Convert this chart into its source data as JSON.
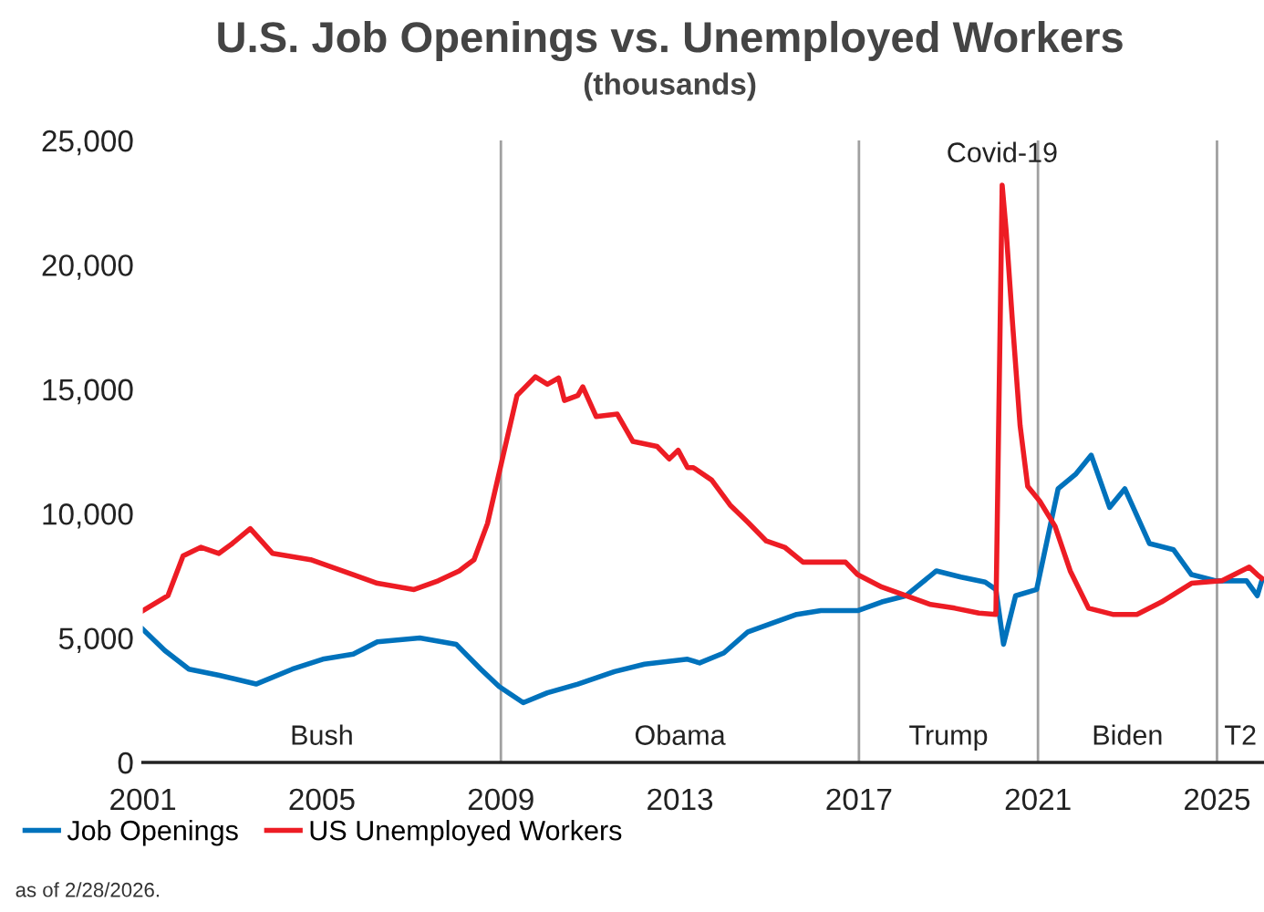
{
  "chart_data": {
    "type": "line",
    "title": "U.S. Job Openings vs. Unemployed Workers",
    "subtitle": "(thousands)",
    "xlim": [
      2001,
      2026.05
    ],
    "xticks": [
      2001,
      2005,
      2009,
      2013,
      2017,
      2021,
      2025
    ],
    "ylim": [
      0,
      25000
    ],
    "yticks": [
      {
        "value": 0,
        "label": "0"
      },
      {
        "value": 5000,
        "label": "5,000"
      },
      {
        "value": 10000,
        "label": "10,000"
      },
      {
        "value": 15000,
        "label": "15,000"
      },
      {
        "value": 20000,
        "label": "20,000"
      },
      {
        "value": 25000,
        "label": "25,000"
      }
    ],
    "grid": false,
    "legend": "bottom left",
    "marker": "none",
    "line_style": "solid",
    "ref_lines": [
      {
        "axis": "x",
        "value": 2009,
        "color": "#a0a0a0"
      },
      {
        "axis": "x",
        "value": 2017,
        "color": "#a0a0a0"
      },
      {
        "axis": "x",
        "value": 2021,
        "color": "#a0a0a0"
      },
      {
        "axis": "x",
        "value": 2025,
        "color": "#a0a0a0"
      }
    ],
    "annotations": [
      "Bush",
      "Obama",
      "Trump",
      "Biden",
      "T2",
      {
        "text": "Covid-19",
        "x": 2020.2,
        "y": 23200
      },
      "as of 2/28/2026."
    ],
    "series": [
      {
        "name": "Job Openings",
        "color": "#0072bc",
        "x": [
          2001.0,
          2001.49,
          2002.03,
          2002.71,
          2003.53,
          2004.34,
          2005.02,
          2005.7,
          2006.24,
          2007.19,
          2008.0,
          2008.55,
          2008.96,
          2009.5,
          2010.04,
          2010.72,
          2011.54,
          2012.21,
          2013.17,
          2013.44,
          2013.98,
          2014.52,
          2015.07,
          2015.61,
          2016.15,
          2016.97,
          2017.51,
          2018.05,
          2018.73,
          2019.28,
          2019.82,
          2020.06,
          2020.23,
          2020.5,
          2020.97,
          2021.45,
          2021.85,
          2022.19,
          2022.6,
          2022.94,
          2023.49,
          2024.03,
          2024.43,
          2024.98,
          2025.66,
          2025.9,
          2026.0
        ],
        "values": [
          5350,
          4500,
          3750,
          3500,
          3150,
          3750,
          4150,
          4350,
          4850,
          5000,
          4750,
          3750,
          3050,
          2400,
          2800,
          3150,
          3650,
          3950,
          4150,
          4000,
          4400,
          5250,
          5600,
          5950,
          6100,
          6100,
          6450,
          6700,
          7700,
          7450,
          7250,
          6950,
          4750,
          6700,
          6950,
          11000,
          11600,
          12350,
          10250,
          11000,
          8800,
          8550,
          7550,
          7300,
          7300,
          6700,
          7300
        ]
      },
      {
        "name": "US Unemployed Workers",
        "color": "#ed1c24",
        "x": [
          2001.0,
          2001.56,
          2001.9,
          2002.3,
          2002.7,
          2003.0,
          2003.4,
          2003.9,
          2004.75,
          2005.7,
          2006.24,
          2007.06,
          2007.6,
          2008.07,
          2008.4,
          2008.7,
          2009.02,
          2009.36,
          2009.77,
          2010.04,
          2010.29,
          2010.42,
          2010.72,
          2010.83,
          2011.13,
          2011.6,
          2011.95,
          2012.49,
          2012.76,
          2012.96,
          2013.17,
          2013.3,
          2013.71,
          2014.12,
          2014.52,
          2014.93,
          2015.34,
          2015.75,
          2016.29,
          2016.7,
          2016.97,
          2017.51,
          2018.05,
          2018.6,
          2019.14,
          2019.68,
          2020.06,
          2020.2,
          2020.29,
          2020.43,
          2020.6,
          2020.77,
          2021.04,
          2021.38,
          2021.72,
          2022.13,
          2022.67,
          2023.21,
          2023.76,
          2024.43,
          2025.11,
          2025.72,
          2025.9,
          2026.0
        ],
        "values": [
          6100,
          6700,
          8300,
          8650,
          8400,
          8800,
          9400,
          8400,
          8150,
          7550,
          7200,
          6950,
          7300,
          7700,
          8150,
          9600,
          12100,
          14750,
          15500,
          15200,
          15450,
          14550,
          14750,
          15100,
          13900,
          14000,
          12900,
          12700,
          12200,
          12550,
          11850,
          11850,
          11350,
          10350,
          9650,
          8900,
          8650,
          8050,
          8050,
          8050,
          7550,
          7050,
          6700,
          6350,
          6200,
          6000,
          5950,
          23200,
          21350,
          17700,
          13550,
          11100,
          10500,
          9500,
          7700,
          6200,
          5950,
          5950,
          6450,
          7200,
          7300,
          7850,
          7550,
          7400
        ]
      }
    ]
  }
}
